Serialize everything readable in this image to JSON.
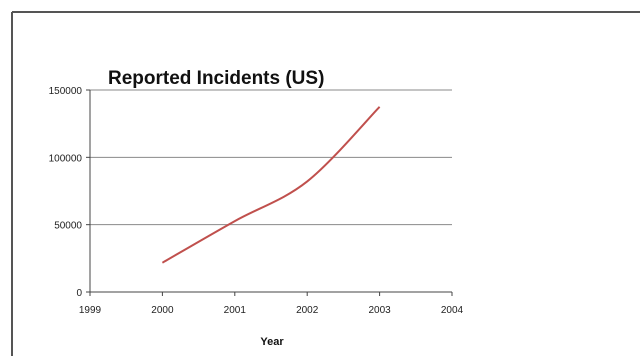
{
  "chart_data": {
    "type": "line",
    "title": "Reported Incidents (US)",
    "xlabel": "Year",
    "ylabel": "",
    "xlim": [
      1999,
      2004
    ],
    "ylim": [
      0,
      150000
    ],
    "x_ticks": [
      "1999",
      "2000",
      "2001",
      "2002",
      "2003",
      "2004"
    ],
    "y_ticks": [
      "0",
      "50000",
      "100000",
      "150000"
    ],
    "grid": "horizontal",
    "legend": "none",
    "series": [
      {
        "color": "#c0504d",
        "x": [
          2000,
          2001,
          2002,
          2003
        ],
        "y": [
          21756,
          52658,
          82094,
          137529
        ]
      }
    ]
  }
}
